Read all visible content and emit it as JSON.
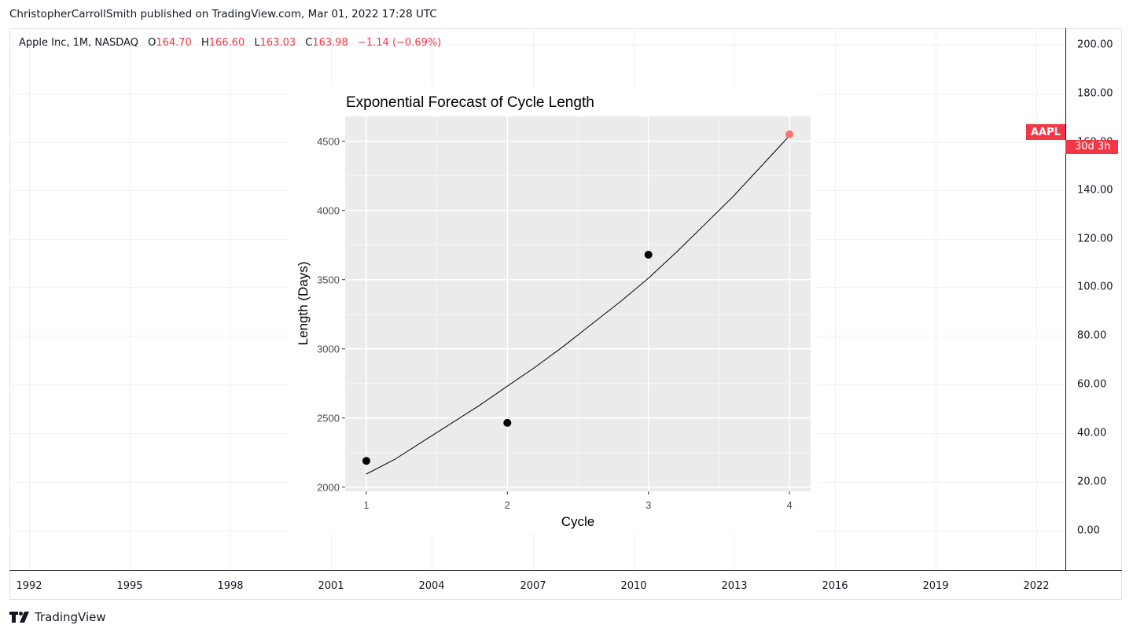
{
  "header": {
    "publisher_line": "ChristopherCarrollSmith published on TradingView.com, Mar 01, 2022 17:28 UTC"
  },
  "legend": {
    "name": "Apple Inc, 1M, NASDAQ",
    "o_label": "O",
    "o_value": "164.70",
    "h_label": "H",
    "h_value": "166.60",
    "l_label": "L",
    "l_value": "163.03",
    "c_label": "C",
    "c_value": "163.98",
    "change": "−1.14 (−0.69%)"
  },
  "price_axis": {
    "ticks": [
      "200.00",
      "180.00",
      "160.00",
      "140.00",
      "120.00",
      "100.00",
      "80.00",
      "60.00",
      "40.00",
      "20.00",
      "0.00"
    ]
  },
  "time_axis": {
    "ticks": [
      "1992",
      "1995",
      "1998",
      "2001",
      "2004",
      "2007",
      "2010",
      "2013",
      "2016",
      "2019",
      "2022"
    ]
  },
  "price_badge": {
    "symbol": "AAPL",
    "price": "163.98",
    "countdown": "30d 3h",
    "color": "#f23645"
  },
  "footer": {
    "brand": "TradingView"
  },
  "chart_data": {
    "type": "scatter",
    "title": "Exponential Forecast of Cycle Length",
    "xlabel": "Cycle",
    "ylabel": "Length (Days)",
    "x_ticks": [
      "1",
      "2",
      "3",
      "4"
    ],
    "y_ticks": [
      "2000",
      "2500",
      "3000",
      "3500",
      "4000",
      "4500"
    ],
    "xlim": [
      0.85,
      4.15
    ],
    "ylim": [
      1970,
      4680
    ],
    "points": [
      {
        "x": 1,
        "y": 2190,
        "color": "#000000"
      },
      {
        "x": 2,
        "y": 2465,
        "color": "#000000"
      },
      {
        "x": 3,
        "y": 3680,
        "color": "#000000"
      },
      {
        "x": 4,
        "y": 4550,
        "color": "#f8766d"
      }
    ],
    "fit_line": {
      "x": [
        1,
        1.2,
        1.4,
        1.6,
        1.8,
        2,
        2.2,
        2.4,
        2.6,
        2.8,
        3,
        3.2,
        3.4,
        3.6,
        3.8,
        4
      ],
      "y": [
        2095,
        2200,
        2330,
        2460,
        2590,
        2730,
        2870,
        3020,
        3180,
        3340,
        3510,
        3700,
        3900,
        4100,
        4320,
        4540
      ],
      "color": "#000000"
    },
    "panel_color": "#ebebeb",
    "grid": true
  }
}
